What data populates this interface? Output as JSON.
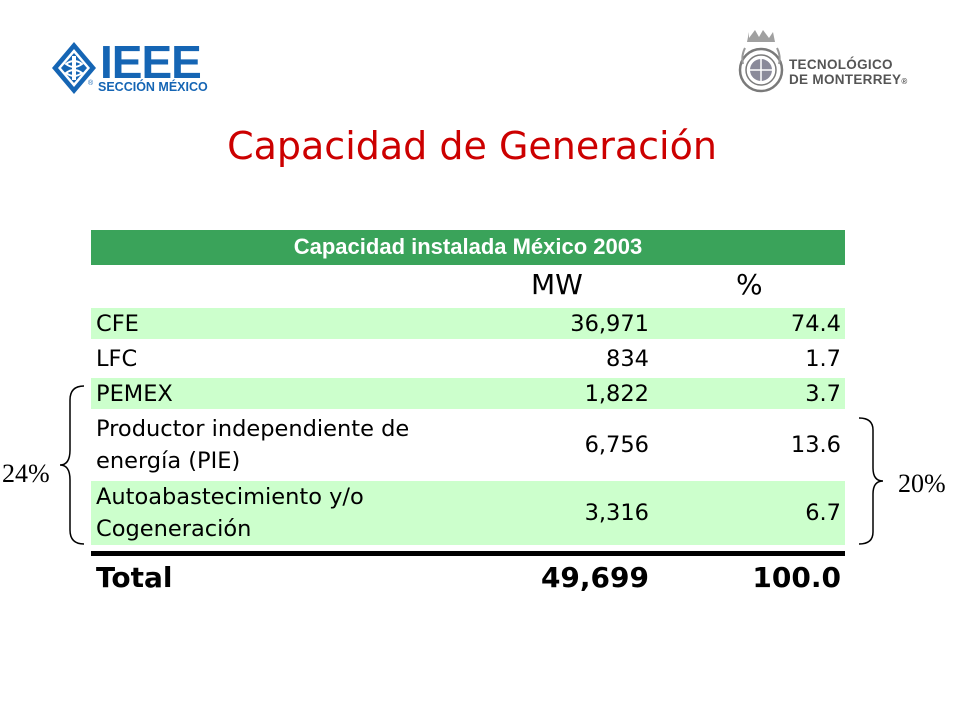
{
  "header": {
    "ieee_logo": {
      "name": "IEEE",
      "subtitle": "SECCIÓN MÉXICO",
      "color": "#1565b4"
    },
    "tec_logo": {
      "line1": "TECNOLÓGICO",
      "line2": "DE MONTERREY",
      "color": "#555555"
    }
  },
  "slide": {
    "title": "Capacidad de Generación",
    "title_color": "#cc0000"
  },
  "table": {
    "caption": "Capacidad instalada México 2003",
    "caption_bg": "#3aa35a",
    "row_bg": "#ccffcc",
    "columns": [
      "",
      "MW",
      "%"
    ],
    "rows": [
      {
        "label_lines": [
          "CFE"
        ],
        "mw": "36,971",
        "pct": "74.4"
      },
      {
        "label_lines": [
          "LFC"
        ],
        "mw": "834",
        "pct": "1.7"
      },
      {
        "label_lines": [
          "PEMEX"
        ],
        "mw": "1,822",
        "pct": "3.7"
      },
      {
        "label_lines": [
          "Productor independiente de",
          "energía (PIE)"
        ],
        "mw": "6,756",
        "pct": "13.6"
      },
      {
        "label_lines": [
          "Autoabastecimiento y/o",
          "Cogeneración"
        ],
        "mw": "3,316",
        "pct": "6.7"
      }
    ],
    "total": {
      "label": "Total",
      "mw": "49,699",
      "pct": "100.0"
    }
  },
  "annotations": {
    "left_brace_label": "24%",
    "right_brace_label": "20%"
  }
}
